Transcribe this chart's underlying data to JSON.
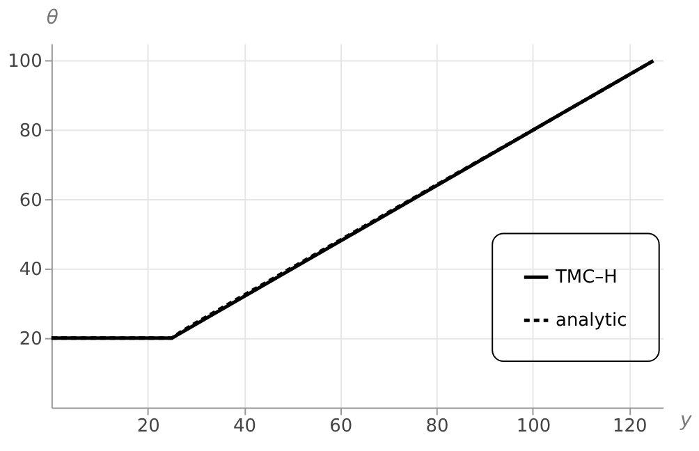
{
  "chart_data": {
    "type": "line",
    "xlabel": "y",
    "ylabel": "θ",
    "xlim": [
      0,
      127
    ],
    "ylim": [
      0,
      105
    ],
    "xticks": [
      20,
      40,
      60,
      80,
      100,
      120
    ],
    "yticks": [
      20,
      40,
      60,
      80,
      100
    ],
    "grid": true,
    "legend": "right",
    "series": [
      {
        "name": "TMC–H",
        "color": "#000000",
        "line_style": "solid",
        "x": [
          0,
          25,
          125
        ],
        "values": [
          20,
          20,
          100
        ]
      },
      {
        "name": "analytic",
        "color": "#000000",
        "line_style": "dashed",
        "x": [
          0,
          25,
          27,
          30,
          40,
          60,
          80,
          100,
          125
        ],
        "values": [
          20,
          20,
          21.9,
          24.4,
          32.4,
          48.3,
          64.2,
          80,
          100
        ]
      }
    ]
  }
}
